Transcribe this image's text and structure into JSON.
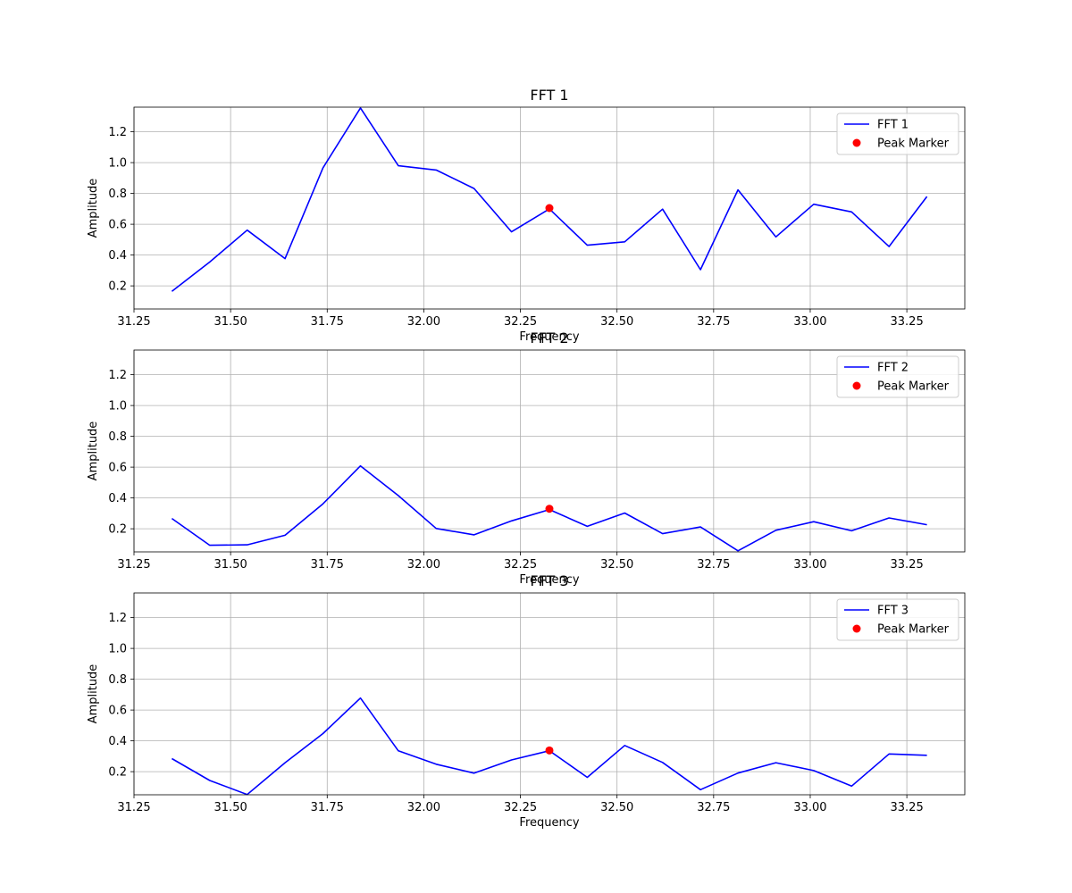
{
  "colors": {
    "line": "#0000ff",
    "marker": "#ff0000",
    "grid": "#b0b0b0",
    "axes": "#000000"
  },
  "chart_data": [
    {
      "type": "line",
      "title": "FFT 1",
      "xlabel": "Frequency",
      "ylabel": "Amplitude",
      "xlim": [
        31.25,
        33.4
      ],
      "ylim": [
        0.05,
        1.36
      ],
      "xticks": [
        "31.25",
        "31.50",
        "31.75",
        "32.00",
        "32.25",
        "32.50",
        "32.75",
        "33.00",
        "33.25"
      ],
      "yticks": [
        "0.2",
        "0.4",
        "0.6",
        "0.8",
        "1.0",
        "1.2"
      ],
      "grid": true,
      "legend_position": "upper right",
      "series": [
        {
          "name": "FFT 1",
          "kind": "line",
          "x": [
            31.348,
            31.446,
            31.543,
            31.641,
            31.739,
            31.836,
            31.934,
            32.032,
            32.13,
            32.227,
            32.325,
            32.423,
            32.52,
            32.618,
            32.716,
            32.813,
            32.911,
            33.009,
            33.107,
            33.204,
            33.302
          ],
          "y": [
            0.165,
            0.355,
            0.562,
            0.377,
            0.965,
            1.355,
            0.98,
            0.952,
            0.832,
            0.551,
            0.7,
            0.464,
            0.486,
            0.698,
            0.305,
            0.823,
            0.518,
            0.73,
            0.68,
            0.455,
            0.78
          ]
        },
        {
          "name": "Peak Marker",
          "kind": "scatter",
          "x": [
            32.325
          ],
          "y": [
            0.705
          ]
        }
      ]
    },
    {
      "type": "line",
      "title": "FFT 2",
      "xlabel": "Frequency",
      "ylabel": "Amplitude",
      "xlim": [
        31.25,
        33.4
      ],
      "ylim": [
        0.05,
        1.36
      ],
      "xticks": [
        "31.25",
        "31.50",
        "31.75",
        "32.00",
        "32.25",
        "32.50",
        "32.75",
        "33.00",
        "33.25"
      ],
      "yticks": [
        "0.2",
        "0.4",
        "0.6",
        "0.8",
        "1.0",
        "1.2"
      ],
      "grid": true,
      "legend_position": "upper right",
      "series": [
        {
          "name": "FFT 2",
          "kind": "line",
          "x": [
            31.348,
            31.446,
            31.543,
            31.641,
            31.739,
            31.836,
            31.934,
            32.032,
            32.13,
            32.227,
            32.325,
            32.423,
            32.52,
            32.618,
            32.716,
            32.813,
            32.911,
            33.009,
            33.107,
            33.204,
            33.302
          ],
          "y": [
            0.267,
            0.093,
            0.096,
            0.158,
            0.362,
            0.608,
            0.415,
            0.202,
            0.161,
            0.251,
            0.325,
            0.216,
            0.302,
            0.168,
            0.212,
            0.057,
            0.19,
            0.246,
            0.187,
            0.27,
            0.226
          ]
        },
        {
          "name": "Peak Marker",
          "kind": "scatter",
          "x": [
            32.325
          ],
          "y": [
            0.33
          ]
        }
      ]
    },
    {
      "type": "line",
      "title": "FFT 3",
      "xlabel": "Frequency",
      "ylabel": "Amplitude",
      "xlim": [
        31.25,
        33.4
      ],
      "ylim": [
        0.05,
        1.36
      ],
      "xticks": [
        "31.25",
        "31.50",
        "31.75",
        "32.00",
        "32.25",
        "32.50",
        "32.75",
        "33.00",
        "33.25"
      ],
      "yticks": [
        "0.2",
        "0.4",
        "0.6",
        "0.8",
        "1.0",
        "1.2"
      ],
      "grid": true,
      "legend_position": "upper right",
      "series": [
        {
          "name": "FFT 3",
          "kind": "line",
          "x": [
            31.348,
            31.446,
            31.543,
            31.641,
            31.739,
            31.836,
            31.934,
            32.032,
            32.13,
            32.227,
            32.325,
            32.423,
            32.52,
            32.618,
            32.716,
            32.813,
            32.911,
            33.009,
            33.107,
            33.204,
            33.302
          ],
          "y": [
            0.285,
            0.143,
            0.052,
            0.258,
            0.447,
            0.678,
            0.335,
            0.248,
            0.19,
            0.276,
            0.336,
            0.163,
            0.37,
            0.26,
            0.083,
            0.191,
            0.258,
            0.207,
            0.106,
            0.315,
            0.306
          ]
        },
        {
          "name": "Peak Marker",
          "kind": "scatter",
          "x": [
            32.325
          ],
          "y": [
            0.338
          ]
        }
      ]
    }
  ]
}
